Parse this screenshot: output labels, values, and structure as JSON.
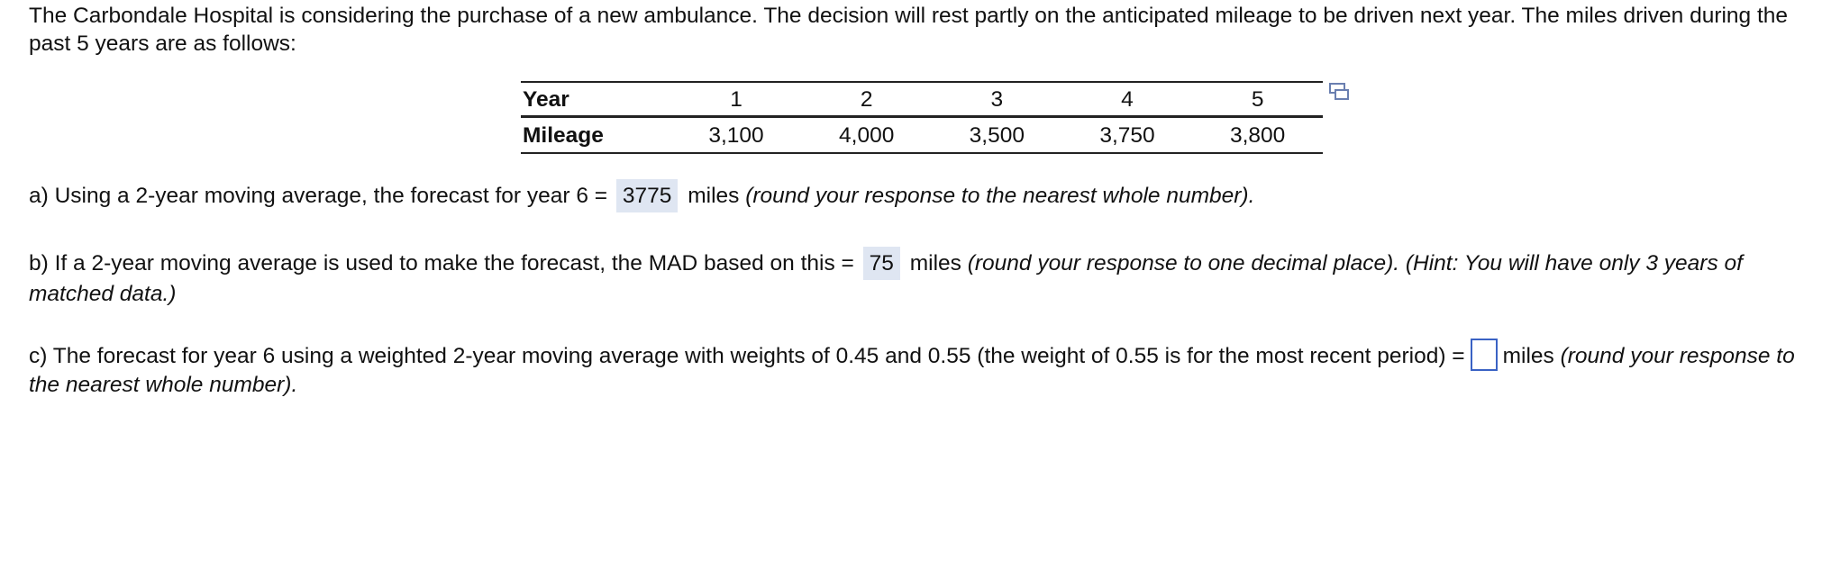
{
  "intro": "The Carbondale Hospital is considering the purchase of a new ambulance. The decision will rest partly on the anticipated mileage to be driven next year. The miles driven during the past 5 years are as follows:",
  "table": {
    "row_headers": [
      "Year",
      "Mileage"
    ],
    "years": [
      "1",
      "2",
      "3",
      "4",
      "5"
    ],
    "mileage": [
      "3,100",
      "4,000",
      "3,500",
      "3,750",
      "3,800"
    ]
  },
  "icons": {
    "popout": "popout-window-icon"
  },
  "colors": {
    "answer_bg": "#dfe6f2",
    "input_border": "#3a62c4"
  },
  "qa": {
    "prefix": "a) Using a 2-year moving average, the forecast for year 6 =",
    "answer": "3775",
    "unit": "miles",
    "note": "(round your response to the nearest whole number)."
  },
  "qb": {
    "prefix": "b) If a 2-year moving average is used to make the forecast, the MAD based on this =",
    "answer": "75",
    "unit": "miles",
    "note": "(round your response to one decimal place).  (Hint: You will have only 3 years of matched data.)"
  },
  "qc": {
    "prefix": "c) The forecast for year 6 using a weighted 2-year moving average with weights of 0.45 and 0.55 (the weight of 0.55 is for the most recent period) =",
    "answer": "",
    "unit": "miles",
    "note": "(round your response to the nearest whole number)."
  }
}
